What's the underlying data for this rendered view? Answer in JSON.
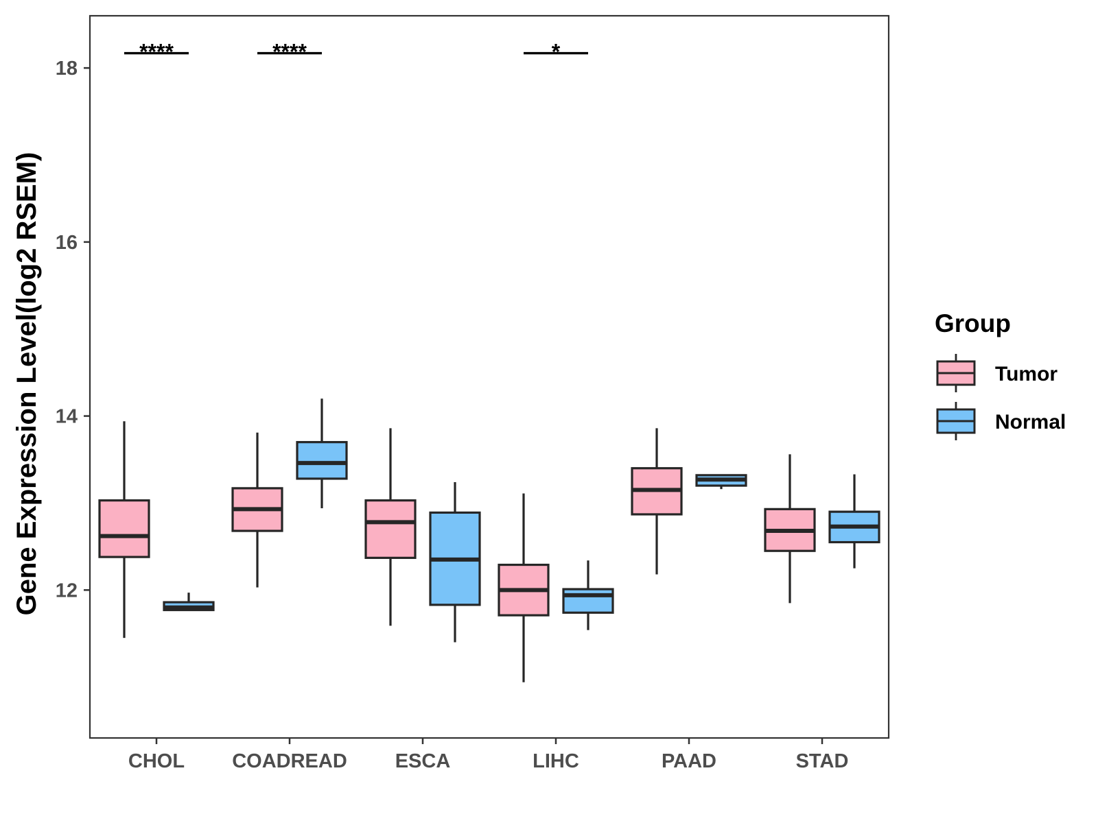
{
  "chart_data": {
    "type": "boxplot",
    "title": "",
    "xlabel": "",
    "ylabel": "Gene Expression Level(log2 RSEM)",
    "ylim": [
      10.3,
      18.6
    ],
    "yticks": [
      12,
      14,
      16,
      18
    ],
    "ytick_labels": [
      "12",
      "14",
      "16",
      "18"
    ],
    "categories": [
      "CHOL",
      "COADREAD",
      "ESCA",
      "LIHC",
      "PAAD",
      "STAD"
    ],
    "legend": {
      "title": "Group",
      "position": "right",
      "entries": [
        {
          "name": "Tumor",
          "color": "#fbb1c3"
        },
        {
          "name": "Normal",
          "color": "#79c3f8"
        }
      ]
    },
    "series": [
      {
        "name": "Tumor",
        "color": "#fbb1c3",
        "boxes": [
          {
            "category": "CHOL",
            "whisker_low": 11.45,
            "q1": 12.38,
            "median": 12.62,
            "q3": 13.03,
            "whisker_high": 13.94
          },
          {
            "category": "COADREAD",
            "whisker_low": 12.03,
            "q1": 12.68,
            "median": 12.93,
            "q3": 13.17,
            "whisker_high": 13.81
          },
          {
            "category": "ESCA",
            "whisker_low": 11.59,
            "q1": 12.37,
            "median": 12.78,
            "q3": 13.03,
            "whisker_high": 13.86
          },
          {
            "category": "LIHC",
            "whisker_low": 10.94,
            "q1": 11.71,
            "median": 12.0,
            "q3": 12.29,
            "whisker_high": 13.11
          },
          {
            "category": "PAAD",
            "whisker_low": 12.18,
            "q1": 12.87,
            "median": 13.15,
            "q3": 13.4,
            "whisker_high": 13.86
          },
          {
            "category": "STAD",
            "whisker_low": 11.85,
            "q1": 12.45,
            "median": 12.68,
            "q3": 12.93,
            "whisker_high": 13.56
          }
        ]
      },
      {
        "name": "Normal",
        "color": "#79c3f8",
        "boxes": [
          {
            "category": "CHOL",
            "whisker_low": 11.77,
            "q1": 11.77,
            "median": 11.8,
            "q3": 11.86,
            "whisker_high": 11.97
          },
          {
            "category": "COADREAD",
            "whisker_low": 12.94,
            "q1": 13.28,
            "median": 13.46,
            "q3": 13.7,
            "whisker_high": 14.2
          },
          {
            "category": "ESCA",
            "whisker_low": 11.4,
            "q1": 11.83,
            "median": 12.35,
            "q3": 12.89,
            "whisker_high": 13.24
          },
          {
            "category": "LIHC",
            "whisker_low": 11.54,
            "q1": 11.74,
            "median": 11.94,
            "q3": 12.01,
            "whisker_high": 12.34
          },
          {
            "category": "PAAD",
            "whisker_low": 13.16,
            "q1": 13.2,
            "median": 13.27,
            "q3": 13.32,
            "whisker_high": 13.32
          },
          {
            "category": "STAD",
            "whisker_low": 12.25,
            "q1": 12.55,
            "median": 12.73,
            "q3": 12.9,
            "whisker_high": 13.33
          }
        ]
      }
    ],
    "annotations": [
      {
        "category": "CHOL",
        "label": "****",
        "y": 18.17
      },
      {
        "category": "COADREAD",
        "label": "****",
        "y": 18.17
      },
      {
        "category": "LIHC",
        "label": "*",
        "y": 18.17
      }
    ]
  }
}
